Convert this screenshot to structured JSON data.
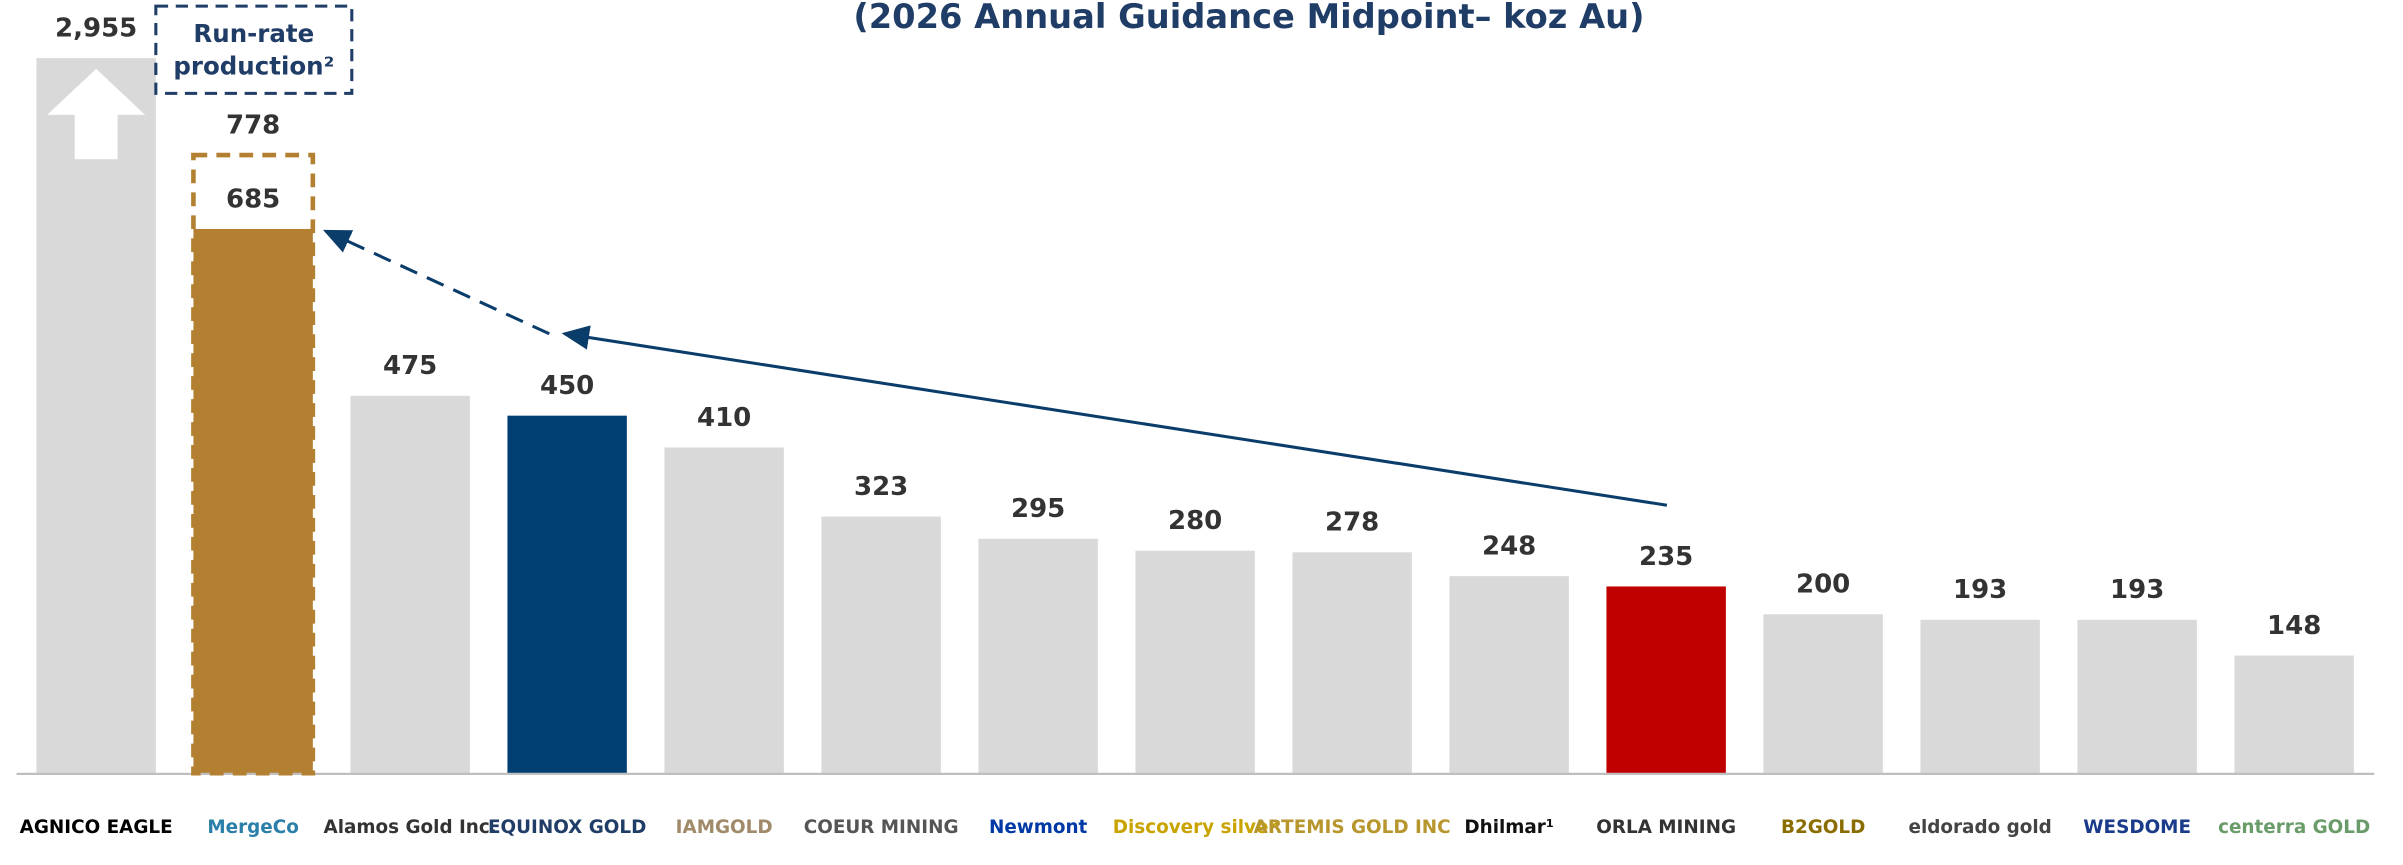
{
  "chart_data": {
    "type": "bar",
    "title": "(2026 Annual Guidance Midpoint– koz Au)",
    "categories": [
      "AGNICO EAGLE",
      "MergeCo",
      "Alamos Gold Inc.",
      "EQUINOX GOLD",
      "IAMGOLD",
      "COEUR MINING",
      "Newmont",
      "Discovery silver",
      "ARTEMIS GOLD INC",
      "Dhilmar¹",
      "ORLA MINING",
      "B2GOLD",
      "eldorado gold",
      "WESDOME",
      "centerra GOLD"
    ],
    "values": [
      2955,
      685,
      475,
      450,
      410,
      323,
      295,
      280,
      278,
      248,
      235,
      200,
      193,
      193,
      148
    ],
    "value_labels": [
      "2,955",
      "685",
      "475",
      "450",
      "410",
      "323",
      "295",
      "280",
      "278",
      "248",
      "235",
      "200",
      "193",
      "193",
      "148"
    ],
    "colors": [
      "#d9d9d9",
      "#b37f31",
      "#d9d9d9",
      "#003f72",
      "#d9d9d9",
      "#d9d9d9",
      "#d9d9d9",
      "#d9d9d9",
      "#d9d9d9",
      "#d9d9d9",
      "#c00000",
      "#d9d9d9",
      "#d9d9d9",
      "#d9d9d9",
      "#d9d9d9"
    ],
    "run_rate": {
      "name": [
        "Run-rate",
        "production²"
      ],
      "color": "#b37f31",
      "values": [
        null,
        778,
        null,
        null,
        null,
        null,
        null,
        null,
        null,
        null,
        null,
        null,
        null,
        null,
        null
      ]
    },
    "ylim": [
      0,
      900
    ]
  }
}
